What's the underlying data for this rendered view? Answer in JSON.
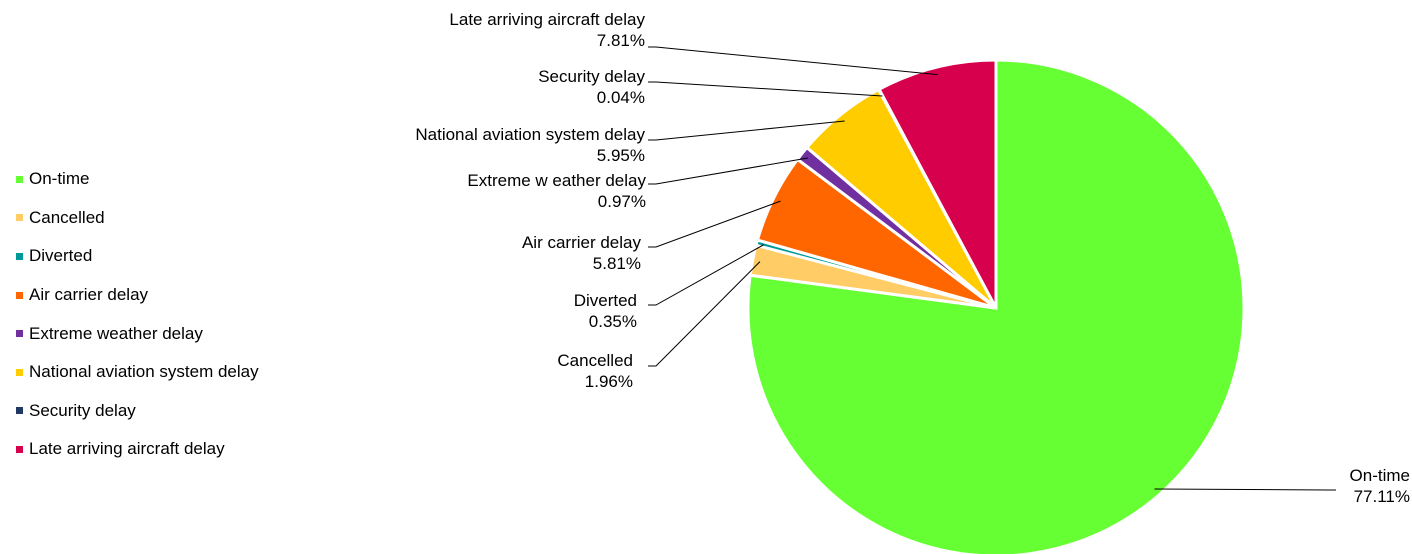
{
  "chart_data": {
    "type": "pie",
    "title": "",
    "legend_position": "left",
    "categories": [
      "On-time",
      "Cancelled",
      "Diverted",
      "Air carrier delay",
      "Extreme weather delay",
      "National aviation system delay",
      "Security delay",
      "Late arriving aircraft delay"
    ],
    "values": [
      77.11,
      1.96,
      0.35,
      5.81,
      0.97,
      5.95,
      0.04,
      7.81
    ],
    "value_labels": [
      "77.11%",
      "1.96%",
      "0.35%",
      "5.81%",
      "0.97%",
      "5.95%",
      "0.04%",
      "7.81%"
    ],
    "slice_labels": [
      "On-time",
      "Cancelled",
      "Diverted",
      "Air carrier delay",
      "Extreme w eather delay",
      "National aviation system delay",
      "Security delay",
      "Late arriving aircraft delay"
    ],
    "colors": [
      "#66FF33",
      "#FFCC66",
      "#009999",
      "#FF6600",
      "#7030A0",
      "#FFCC00",
      "#1F3864",
      "#D6004C"
    ]
  }
}
